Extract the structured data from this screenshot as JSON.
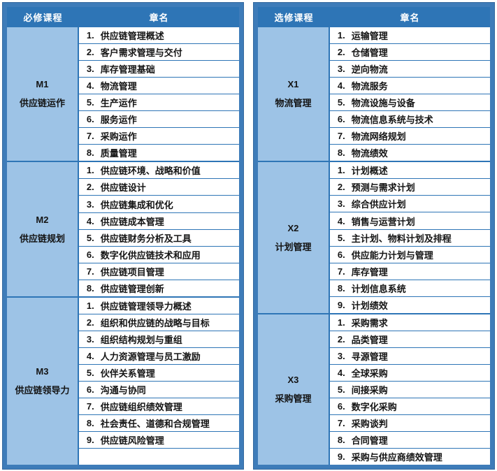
{
  "colors": {
    "header_bg": "#2E75B6",
    "label_bg": "#9DC3E6",
    "grid_border": "#2E75B6",
    "outer_border": "#3E7CB9",
    "header_text": "#FFFFFF",
    "cell_text": "#141414",
    "cell_bg": "#FFFFFF"
  },
  "tables": [
    {
      "id": "required-courses",
      "header": {
        "course_col": "必修课程",
        "chapter_col": "章名"
      },
      "groups": [
        {
          "code": "M1",
          "name": "供应链运作",
          "chapters": [
            {
              "num": "1.",
              "title": "供应链管理概述"
            },
            {
              "num": "2.",
              "title": "客户需求管理与交付"
            },
            {
              "num": "3.",
              "title": "库存管理基础"
            },
            {
              "num": "4.",
              "title": "物流管理"
            },
            {
              "num": "5.",
              "title": "生产运作"
            },
            {
              "num": "6.",
              "title": "服务运作"
            },
            {
              "num": "7.",
              "title": "采购运作"
            },
            {
              "num": "8.",
              "title": "质量管理"
            }
          ]
        },
        {
          "code": "M2",
          "name": "供应链规划",
          "chapters": [
            {
              "num": "1.",
              "title": "供应链环境、战略和价值"
            },
            {
              "num": "2.",
              "title": "供应链设计"
            },
            {
              "num": "3.",
              "title": "供应链集成和优化"
            },
            {
              "num": "4.",
              "title": "供应链成本管理"
            },
            {
              "num": "5.",
              "title": "供应链财务分析及工具"
            },
            {
              "num": "6.",
              "title": "数字化供应链技术和应用"
            },
            {
              "num": "7.",
              "title": "供应链项目管理"
            },
            {
              "num": "8.",
              "title": "供应链管理创新"
            }
          ]
        },
        {
          "code": "M3",
          "name": "供应链领导力",
          "chapters": [
            {
              "num": "1.",
              "title": "供应链管理领导力概述"
            },
            {
              "num": "2.",
              "title": "组织和供应链的战略与目标"
            },
            {
              "num": "3.",
              "title": "组织结构规划与重组"
            },
            {
              "num": "4.",
              "title": "人力资源管理与员工激励"
            },
            {
              "num": "5.",
              "title": "伙伴关系管理"
            },
            {
              "num": "6.",
              "title": "沟通与协同"
            },
            {
              "num": "7.",
              "title": "供应链组织绩效管理"
            },
            {
              "num": "8.",
              "title": "社会责任、道德和合规管理"
            },
            {
              "num": "9.",
              "title": "供应链风险管理"
            },
            {
              "num": "",
              "title": ""
            }
          ]
        }
      ]
    },
    {
      "id": "elective-courses",
      "header": {
        "course_col": "选修课程",
        "chapter_col": "章名"
      },
      "groups": [
        {
          "code": "X1",
          "name": "物流管理",
          "chapters": [
            {
              "num": "1.",
              "title": "运输管理"
            },
            {
              "num": "2.",
              "title": "仓储管理"
            },
            {
              "num": "3.",
              "title": "逆向物流"
            },
            {
              "num": "4.",
              "title": "物流服务"
            },
            {
              "num": "5.",
              "title": "物流设施与设备"
            },
            {
              "num": "6.",
              "title": "物流信息系统与技术"
            },
            {
              "num": "7.",
              "title": "物流网络规划"
            },
            {
              "num": "8.",
              "title": "物流绩效"
            }
          ]
        },
        {
          "code": "X2",
          "name": "计划管理",
          "chapters": [
            {
              "num": "1.",
              "title": "计划概述"
            },
            {
              "num": "2.",
              "title": "预测与需求计划"
            },
            {
              "num": "3.",
              "title": "综合供应计划"
            },
            {
              "num": "4.",
              "title": "销售与运营计划"
            },
            {
              "num": "5.",
              "title": "主计划、物料计划及排程"
            },
            {
              "num": "6.",
              "title": "供应能力计划与管理"
            },
            {
              "num": "7.",
              "title": "库存管理"
            },
            {
              "num": "8.",
              "title": "计划信息系统"
            },
            {
              "num": "9.",
              "title": "计划绩效"
            }
          ]
        },
        {
          "code": "X3",
          "name": "采购管理",
          "chapters": [
            {
              "num": "1.",
              "title": "采购需求"
            },
            {
              "num": "2.",
              "title": "品类管理"
            },
            {
              "num": "3.",
              "title": "寻源管理"
            },
            {
              "num": "4.",
              "title": "全球采购"
            },
            {
              "num": "5.",
              "title": "间接采购"
            },
            {
              "num": "6.",
              "title": "数字化采购"
            },
            {
              "num": "7.",
              "title": "采购谈判"
            },
            {
              "num": "8.",
              "title": "合同管理"
            },
            {
              "num": "9.",
              "title": "采购与供应商绩效管理"
            }
          ]
        }
      ]
    }
  ]
}
